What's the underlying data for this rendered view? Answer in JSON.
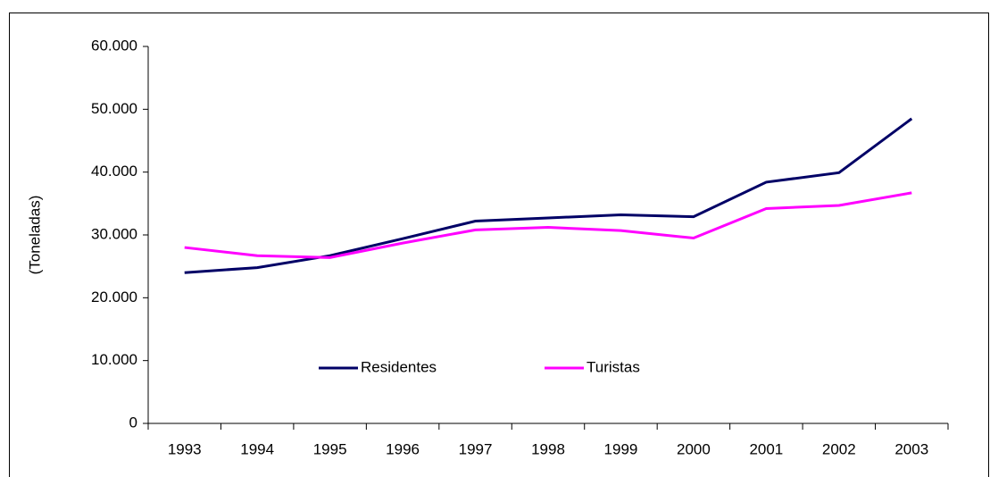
{
  "chart_data": {
    "type": "line",
    "ylabel": "(Toneladas)",
    "categories": [
      "1993",
      "1994",
      "1995",
      "1996",
      "1997",
      "1998",
      "1999",
      "2000",
      "2001",
      "2002",
      "2003"
    ],
    "series": [
      {
        "name": "Residentes",
        "color": "#000066",
        "values": [
          24000,
          24800,
          26700,
          29400,
          32200,
          32700,
          33200,
          32900,
          38400,
          39900,
          48500
        ]
      },
      {
        "name": "Turistas",
        "color": "#ff00ff",
        "values": [
          28000,
          26700,
          26400,
          28700,
          30800,
          31200,
          30700,
          29500,
          34200,
          34700,
          36700
        ]
      }
    ],
    "ylim": [
      0,
      60000
    ],
    "yticks": [
      0,
      {
        "value": 10000,
        "label": "10.000"
      },
      {
        "value": 20000,
        "label": "20.000"
      },
      {
        "value": 30000,
        "label": "30.000"
      },
      {
        "value": 40000,
        "label": "40.000"
      },
      {
        "value": 50000,
        "label": "50.000"
      },
      {
        "value": 60000,
        "label": "60.000"
      }
    ],
    "grid": false
  }
}
